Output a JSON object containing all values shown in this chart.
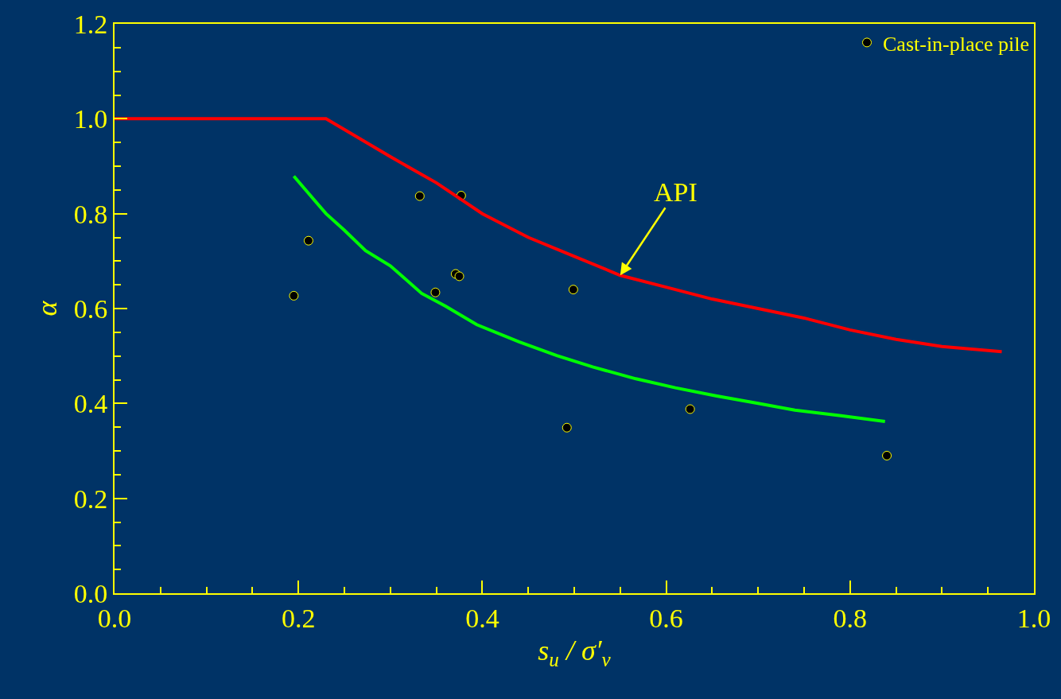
{
  "chart_data": {
    "type": "scatter",
    "xlabel": "s$_{u}$ / σ′$_{v}$",
    "ylabel": "α",
    "xlim": [
      0,
      1.0
    ],
    "ylim": [
      0,
      1.2
    ],
    "xticks": [
      {
        "value": 0,
        "label": "0.0"
      },
      {
        "value": 0.05,
        "label": null
      },
      {
        "value": 0.1,
        "label": null
      },
      {
        "value": 0.15,
        "label": null
      },
      {
        "value": 0.2,
        "label": "0.2"
      },
      {
        "value": 0.25,
        "label": null
      },
      {
        "value": 0.3,
        "label": null
      },
      {
        "value": 0.35,
        "label": null
      },
      {
        "value": 0.4,
        "label": "0.4"
      },
      {
        "value": 0.45,
        "label": null
      },
      {
        "value": 0.5,
        "label": null
      },
      {
        "value": 0.55,
        "label": null
      },
      {
        "value": 0.6,
        "label": "0.6"
      },
      {
        "value": 0.65,
        "label": null
      },
      {
        "value": 0.7,
        "label": null
      },
      {
        "value": 0.75,
        "label": null
      },
      {
        "value": 0.8,
        "label": "0.8"
      },
      {
        "value": 0.85,
        "label": null
      },
      {
        "value": 0.9,
        "label": null
      },
      {
        "value": 0.95,
        "label": null
      },
      {
        "value": 1.0,
        "label": "1.0"
      }
    ],
    "yticks": [
      {
        "value": 0,
        "label": "0.0"
      },
      {
        "value": 0.05,
        "label": null
      },
      {
        "value": 0.1,
        "label": null
      },
      {
        "value": 0.15,
        "label": null
      },
      {
        "value": 0.2,
        "label": "0.2"
      },
      {
        "value": 0.25,
        "label": null
      },
      {
        "value": 0.3,
        "label": null
      },
      {
        "value": 0.35,
        "label": null
      },
      {
        "value": 0.4,
        "label": "0.4"
      },
      {
        "value": 0.45,
        "label": null
      },
      {
        "value": 0.5,
        "label": null
      },
      {
        "value": 0.55,
        "label": null
      },
      {
        "value": 0.6,
        "label": "0.6"
      },
      {
        "value": 0.65,
        "label": null
      },
      {
        "value": 0.7,
        "label": null
      },
      {
        "value": 0.75,
        "label": null
      },
      {
        "value": 0.8,
        "label": "0.8"
      },
      {
        "value": 0.85,
        "label": null
      },
      {
        "value": 0.9,
        "label": null
      },
      {
        "value": 0.95,
        "label": null
      },
      {
        "value": 1.0,
        "label": "1.0"
      },
      {
        "value": 1.05,
        "label": null
      },
      {
        "value": 1.1,
        "label": null
      },
      {
        "value": 1.15,
        "label": null
      },
      {
        "value": 1.2,
        "label": "1.2"
      }
    ],
    "grid": false,
    "legend": "top right",
    "series": [
      {
        "name": "Cast-in-place pile",
        "marker": "circle",
        "color": "#000000",
        "x": [
          0.195,
          0.211,
          0.332,
          0.377,
          0.371,
          0.375,
          0.349,
          0.499,
          0.492,
          0.626,
          0.84
        ],
        "values": [
          0.627,
          0.743,
          0.837,
          0.838,
          0.673,
          0.668,
          0.634,
          0.64,
          0.349,
          0.388,
          0.29
        ]
      },
      {
        "type": "line",
        "color": "#ff0000",
        "marker": "none",
        "line_style": "solid",
        "x": [
          0,
          0.23,
          0.3,
          0.35,
          0.4,
          0.45,
          0.5,
          0.55,
          0.6,
          0.65,
          0.7,
          0.75,
          0.8,
          0.85,
          0.9,
          0.965
        ],
        "values": [
          1.0,
          1.0,
          0.92,
          0.865,
          0.8,
          0.75,
          0.71,
          0.67,
          0.645,
          0.62,
          0.6,
          0.58,
          0.555,
          0.535,
          0.52,
          0.509
        ]
      },
      {
        "type": "line",
        "color": "#00ff00",
        "marker": "none",
        "line_style": "solid",
        "x": [
          0.195,
          0.21,
          0.23,
          0.25,
          0.273,
          0.3,
          0.334,
          0.36,
          0.394,
          0.44,
          0.481,
          0.52,
          0.567,
          0.61,
          0.654,
          0.7,
          0.74,
          0.79,
          0.838
        ],
        "values": [
          0.879,
          0.845,
          0.8,
          0.765,
          0.722,
          0.69,
          0.632,
          0.605,
          0.566,
          0.53,
          0.501,
          0.477,
          0.452,
          0.433,
          0.416,
          0.4,
          0.386,
          0.374,
          0.362
        ]
      }
    ],
    "annotations": [
      {
        "text": "API",
        "x": 0.55,
        "y": 0.67
      }
    ]
  }
}
